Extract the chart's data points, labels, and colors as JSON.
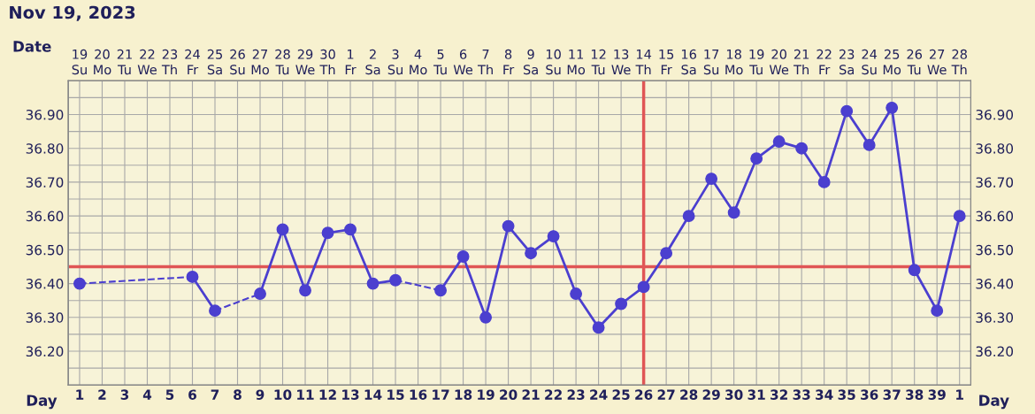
{
  "chart_data": {
    "type": "line",
    "title": "Nov 19, 2023",
    "xlabel": "Day",
    "x2label": "Date",
    "categories": [
      "1",
      "2",
      "3",
      "4",
      "5",
      "6",
      "7",
      "8",
      "9",
      "10",
      "11",
      "12",
      "13",
      "14",
      "15",
      "16",
      "17",
      "18",
      "19",
      "20",
      "21",
      "22",
      "23",
      "24",
      "25",
      "26",
      "27",
      "28",
      "29",
      "30",
      "31",
      "32",
      "33",
      "34",
      "35",
      "36",
      "37",
      "38",
      "39",
      "1"
    ],
    "series": [
      {
        "color": "#4b3fcf",
        "values": [
          36.4,
          null,
          null,
          null,
          null,
          36.42,
          36.32,
          null,
          36.37,
          36.56,
          36.38,
          36.55,
          36.56,
          36.4,
          36.41,
          null,
          36.38,
          36.48,
          36.3,
          36.57,
          36.49,
          36.54,
          36.37,
          36.27,
          36.34,
          36.39,
          36.49,
          36.6,
          36.71,
          36.61,
          36.77,
          36.82,
          36.8,
          36.7,
          36.91,
          36.81,
          36.92,
          36.44,
          36.32,
          36.6
        ]
      }
    ],
    "marker": "circle",
    "line_style": "solid",
    "grid": true,
    "ylim": [
      36.1,
      37.0
    ],
    "yticks": [
      {
        "value": 36.15,
        "label": null
      },
      {
        "value": 36.2,
        "label": "36.20"
      },
      {
        "value": 36.25,
        "label": null
      },
      {
        "value": 36.3,
        "label": "36.30"
      },
      {
        "value": 36.35,
        "label": null
      },
      {
        "value": 36.4,
        "label": "36.40"
      },
      {
        "value": 36.5,
        "label": "36.50"
      },
      {
        "value": 36.55,
        "label": null
      },
      {
        "value": 36.6,
        "label": "36.60"
      },
      {
        "value": 36.65,
        "label": null
      },
      {
        "value": 36.7,
        "label": "36.70"
      },
      {
        "value": 36.75,
        "label": null
      },
      {
        "value": 36.8,
        "label": "36.80"
      },
      {
        "value": 36.85,
        "label": null
      },
      {
        "value": 36.9,
        "label": "36.90"
      },
      {
        "value": 36.95,
        "label": null
      }
    ],
    "y2lim": [
      36.1,
      37.0
    ],
    "y2ticks": [
      {
        "value": 36.15,
        "label": null
      },
      {
        "value": 36.2,
        "label": "36.20"
      },
      {
        "value": 36.25,
        "label": null
      },
      {
        "value": 36.3,
        "label": "36.30"
      },
      {
        "value": 36.35,
        "label": null
      },
      {
        "value": 36.4,
        "label": "36.40"
      },
      {
        "value": 36.5,
        "label": "36.50"
      },
      {
        "value": 36.55,
        "label": null
      },
      {
        "value": 36.6,
        "label": "36.60"
      },
      {
        "value": 36.65,
        "label": null
      },
      {
        "value": 36.7,
        "label": "36.70"
      },
      {
        "value": 36.75,
        "label": null
      },
      {
        "value": 36.8,
        "label": "36.80"
      },
      {
        "value": 36.85,
        "label": null
      },
      {
        "value": 36.9,
        "label": "36.90"
      },
      {
        "value": 36.95,
        "label": null
      }
    ],
    "x2lim": [
      "2023-11-18T12:00",
      "2023-12-28T12:00"
    ],
    "x2ticks": [
      {
        "value": "2023-11-19",
        "label": "19\nSu"
      },
      {
        "value": "2023-11-20",
        "label": "20\nMo"
      },
      {
        "value": "2023-11-21",
        "label": "21\nTu"
      },
      {
        "value": "2023-11-22",
        "label": "22\nWe"
      },
      {
        "value": "2023-11-23",
        "label": "23\nTh"
      },
      {
        "value": "2023-11-24",
        "label": "24\nFr"
      },
      {
        "value": "2023-11-25",
        "label": "25\nSa"
      },
      {
        "value": "2023-11-26",
        "label": "26\nSu"
      },
      {
        "value": "2023-11-27",
        "label": "27\nMo"
      },
      {
        "value": "2023-11-28",
        "label": "28\nTu"
      },
      {
        "value": "2023-11-29",
        "label": "29\nWe"
      },
      {
        "value": "2023-11-30",
        "label": "30\nTh"
      },
      {
        "value": "2023-12-01",
        "label": "1\nFr"
      },
      {
        "value": "2023-12-02",
        "label": "2\nSa"
      },
      {
        "value": "2023-12-03",
        "label": "3\nSu"
      },
      {
        "value": "2023-12-04",
        "label": "4\nMo"
      },
      {
        "value": "2023-12-05",
        "label": "5\nTu"
      },
      {
        "value": "2023-12-06",
        "label": "6\nWe"
      },
      {
        "value": "2023-12-07",
        "label": "7\nTh"
      },
      {
        "value": "2023-12-08",
        "label": "8\nFr"
      },
      {
        "value": "2023-12-09",
        "label": "9\nSa"
      },
      {
        "value": "2023-12-10",
        "label": "10\nSu"
      },
      {
        "value": "2023-12-11",
        "label": "11\nMo"
      },
      {
        "value": "2023-12-12",
        "label": "12\nTu"
      },
      {
        "value": "2023-12-13",
        "label": "13\nWe"
      },
      {
        "value": "2023-12-14",
        "label": "14\nTh"
      },
      {
        "value": "2023-12-15",
        "label": "15\nFr"
      },
      {
        "value": "2023-12-16",
        "label": "16\nSa"
      },
      {
        "value": "2023-12-17",
        "label": "17\nSu"
      },
      {
        "value": "2023-12-18",
        "label": "18\nMo"
      },
      {
        "value": "2023-12-19",
        "label": "19\nTu"
      },
      {
        "value": "2023-12-20",
        "label": "20\nWe"
      },
      {
        "value": "2023-12-21",
        "label": "21\nTh"
      },
      {
        "value": "2023-12-22",
        "label": "22\nFr"
      },
      {
        "value": "2023-12-23",
        "label": "23\nSa"
      },
      {
        "value": "2023-12-24",
        "label": "24\nSu"
      },
      {
        "value": "2023-12-25",
        "label": "25\nMo"
      },
      {
        "value": "2023-12-26",
        "label": "26\nTu"
      },
      {
        "value": "2023-12-27",
        "label": "27\nWe"
      },
      {
        "value": "2023-12-28",
        "label": "28\nTh"
      }
    ],
    "ref_lines": [
      {
        "axis": "y",
        "value": 36.45,
        "color": "#e05555"
      },
      {
        "axis": "x",
        "value": "26",
        "color": "#e05555"
      }
    ]
  }
}
